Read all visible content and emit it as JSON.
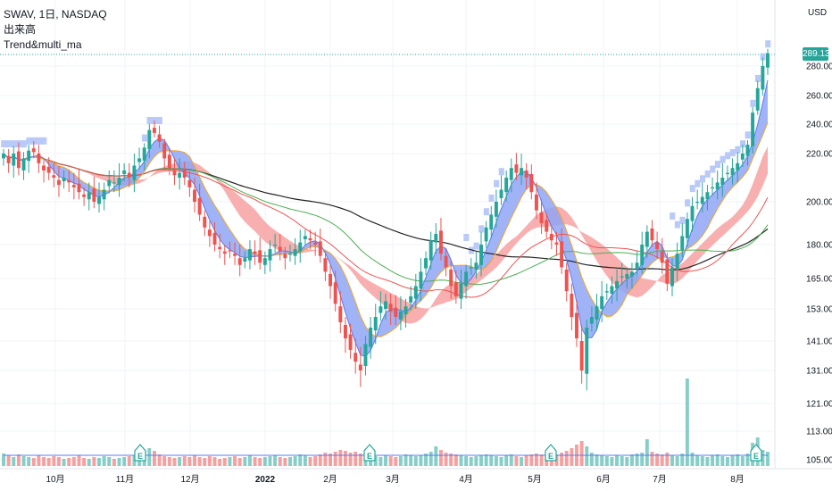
{
  "legend": {
    "symbol": "SWAV, 1日, NASDAQ",
    "volume": "出来高",
    "indicator": "Trend&multi_ma"
  },
  "price_axis": {
    "unit": "USD",
    "current_price": "289.13"
  },
  "chart_data": {
    "type": "candlestick",
    "y_axis_ticks": [
      "280.00",
      "260.00",
      "240.00",
      "220.00",
      "200.00",
      "180.00",
      "165.00",
      "153.00",
      "141.00",
      "131.00",
      "121.00",
      "113.00",
      "105.00"
    ],
    "y_tick_values": [
      280,
      260,
      240,
      220,
      200,
      180,
      165,
      153,
      141,
      131,
      121,
      113,
      105
    ],
    "x_axis_ticks": [
      "10月",
      "11月",
      "12月",
      "2022",
      "2月",
      "3月",
      "4月",
      "5月",
      "6月",
      "7月",
      "8月"
    ],
    "earnings_markers": [
      "E",
      "E",
      "E",
      "E"
    ],
    "colors": {
      "up": "#26a69a",
      "down": "#ef5350",
      "ma_short": "#5b7bf0",
      "ma_mid": "#f5a623",
      "ma_red": "#ef5350",
      "ma_green": "#4caf50",
      "ma_long": "#222222",
      "band_blue": "#8fa6f5",
      "band_red": "#f7a1a1",
      "cloud": "#b3c4f7",
      "cloud_green": "#d7eec0"
    },
    "closes": [
      220,
      216,
      220,
      214,
      218,
      222,
      221,
      216,
      213,
      212,
      210,
      207,
      210,
      208,
      206,
      204,
      202,
      204,
      200,
      202,
      205,
      209,
      208,
      210,
      213,
      210,
      215,
      218,
      224,
      236,
      234,
      228,
      218,
      214,
      211,
      212,
      210,
      206,
      200,
      194,
      188,
      184,
      180,
      178,
      176,
      177,
      175,
      171,
      174,
      178,
      176,
      172,
      174,
      178,
      180,
      177,
      174,
      176,
      178,
      181,
      184,
      182,
      180,
      175,
      168,
      162,
      155,
      148,
      142,
      138,
      134,
      131,
      140,
      146,
      150,
      154,
      156,
      152,
      150,
      152,
      154,
      158,
      162,
      168,
      174,
      182,
      185,
      176,
      170,
      162,
      158,
      163,
      168,
      170,
      172,
      180,
      188,
      194,
      200,
      205,
      210,
      214,
      212,
      214,
      210,
      204,
      196,
      190,
      186,
      182,
      180,
      170,
      160,
      150,
      142,
      131,
      146,
      150,
      154,
      158,
      160,
      162,
      164,
      166,
      167,
      168,
      172,
      180,
      186,
      182,
      178,
      172,
      163,
      170,
      176,
      184,
      192,
      198,
      200,
      202,
      204,
      206,
      208,
      210,
      212,
      214,
      216,
      220,
      226,
      248,
      265,
      280,
      289
    ],
    "volumes": [
      1.4,
      1.2,
      1.0,
      1.3,
      1.1,
      1.0,
      0.9,
      1.2,
      1.0,
      0.9,
      1.1,
      1.0,
      0.8,
      0.9,
      1.0,
      1.2,
      0.9,
      0.8,
      1.0,
      0.9,
      1.1,
      1.0,
      0.8,
      0.9,
      1.0,
      1.1,
      1.2,
      1.5,
      1.8,
      2.0,
      1.7,
      1.3,
      1.1,
      1.0,
      0.9,
      1.0,
      1.1,
      1.0,
      1.2,
      1.0,
      0.9,
      1.1,
      1.0,
      0.8,
      0.9,
      1.0,
      1.1,
      0.9,
      1.0,
      1.2,
      1.0,
      0.9,
      1.0,
      1.1,
      1.2,
      1.0,
      0.9,
      1.0,
      1.1,
      1.3,
      1.2,
      1.0,
      1.1,
      1.3,
      1.5,
      1.4,
      1.6,
      1.8,
      1.7,
      1.5,
      1.6,
      1.4,
      1.3,
      1.2,
      1.1,
      1.0,
      1.2,
      1.1,
      1.0,
      1.1,
      1.3,
      1.2,
      1.1,
      1.2,
      1.4,
      1.6,
      2.2,
      1.8,
      1.5,
      1.4,
      1.3,
      1.2,
      1.1,
      1.0,
      1.1,
      1.2,
      1.3,
      1.2,
      1.1,
      1.0,
      1.2,
      1.3,
      1.1,
      1.0,
      1.2,
      1.3,
      1.4,
      1.3,
      1.2,
      1.1,
      1.3,
      1.5,
      1.7,
      2.0,
      2.4,
      2.8,
      2.2,
      1.5,
      1.3,
      1.2,
      1.1,
      1.0,
      1.2,
      1.1,
      1.0,
      1.3,
      1.4,
      1.5,
      3.0,
      1.6,
      1.4,
      1.3,
      1.5,
      1.2,
      1.1,
      1.4,
      9.8,
      1.5,
      1.2,
      1.1,
      1.0,
      1.2,
      1.3,
      1.1,
      1.0,
      1.2,
      1.3,
      1.1,
      1.4,
      2.6,
      3.2,
      1.8,
      1.6
    ]
  }
}
